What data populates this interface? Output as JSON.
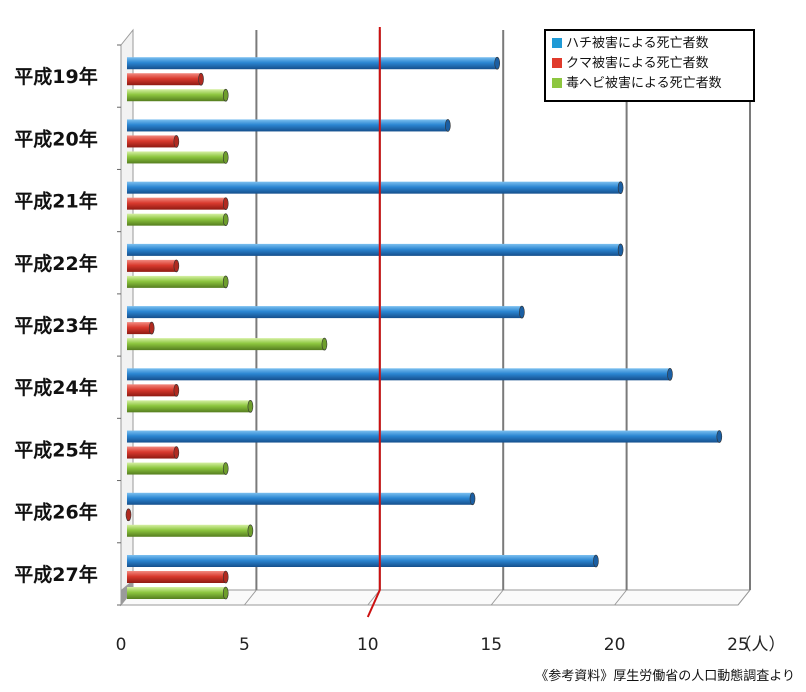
{
  "chart_data": {
    "type": "bar",
    "orientation": "horizontal",
    "categories": [
      "平成19年",
      "平成20年",
      "平成21年",
      "平成22年",
      "平成23年",
      "平成24年",
      "平成25年",
      "平成26年",
      "平成27年"
    ],
    "series": [
      {
        "name": "ハチ被害による死亡者数",
        "values": [
          15,
          13,
          20,
          20,
          16,
          22,
          24,
          14,
          19
        ],
        "color": "#1f77c8"
      },
      {
        "name": "クマ被害による死亡者数",
        "values": [
          3,
          2,
          4,
          2,
          1,
          2,
          2,
          0,
          4
        ],
        "color": "#d9362b"
      },
      {
        "name": "毒ヘビ被害による死亡者数",
        "values": [
          4,
          4,
          4,
          4,
          8,
          5,
          4,
          5,
          4
        ],
        "color": "#8dc63f"
      }
    ],
    "xlim": [
      0,
      25
    ],
    "xticks": [
      "0",
      "5",
      "10",
      "15",
      "20",
      "25"
    ],
    "x_unit": "（人）",
    "reference_line": {
      "value": 10,
      "color": "#cc1111"
    },
    "legend_position": "top-right",
    "grid": true,
    "source_note": "《参考資料》厚生労働省の人口動態調査より"
  }
}
